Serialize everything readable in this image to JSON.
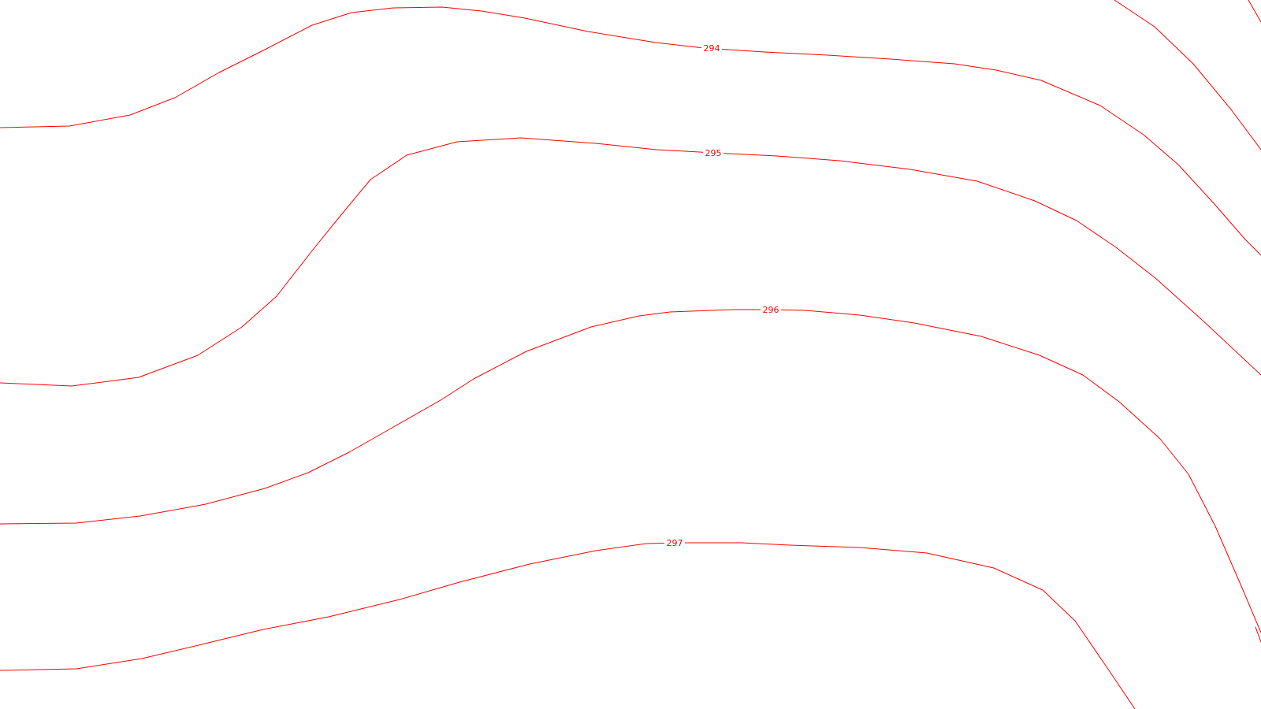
{
  "map": {
    "line_color": "#ff0000",
    "background_color": "#ffffff"
  },
  "contours": [
    {
      "id": "294",
      "label": "294"
    },
    {
      "id": "295",
      "label": "295"
    },
    {
      "id": "296",
      "label": "296"
    },
    {
      "id": "297",
      "label": "297"
    },
    {
      "id": "upper-right-a",
      "label": ""
    },
    {
      "id": "upper-right-b",
      "label": ""
    },
    {
      "id": "upper-right-c",
      "label": ""
    }
  ]
}
